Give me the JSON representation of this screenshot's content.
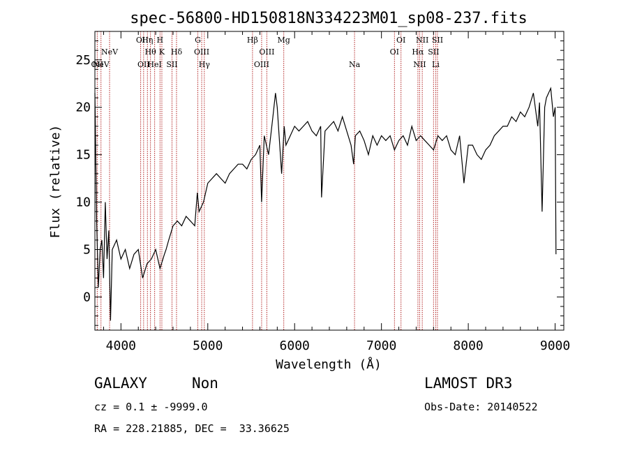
{
  "chart_data": {
    "type": "line",
    "title": "spec-56800-HD150818N334223M01_sp08-237.fits",
    "xlabel": "Wavelength (Å)",
    "ylabel": "Flux (relative)",
    "xlim": [
      3700,
      9100
    ],
    "ylim": [
      -3.5,
      28
    ],
    "xticks": [
      4000,
      5000,
      6000,
      7000,
      8000,
      9000
    ],
    "yticks": [
      0,
      5,
      10,
      15,
      20,
      25
    ],
    "grid": false,
    "series": [
      {
        "color": "#000000",
        "x": [
          3700,
          3720,
          3740,
          3760,
          3780,
          3800,
          3820,
          3840,
          3860,
          3880,
          3900,
          3950,
          4000,
          4050,
          4100,
          4150,
          4200,
          4250,
          4300,
          4350,
          4400,
          4450,
          4500,
          4520,
          4550,
          4600,
          4650,
          4700,
          4750,
          4800,
          4850,
          4880,
          4900,
          4950,
          5000,
          5050,
          5100,
          5150,
          5200,
          5250,
          5300,
          5350,
          5400,
          5450,
          5500,
          5550,
          5600,
          5620,
          5650,
          5700,
          5750,
          5780,
          5800,
          5850,
          5880,
          5900,
          5950,
          6000,
          6050,
          6100,
          6150,
          6200,
          6250,
          6300,
          6310,
          6350,
          6400,
          6450,
          6500,
          6550,
          6600,
          6650,
          6680,
          6700,
          6750,
          6800,
          6850,
          6900,
          6950,
          7000,
          7050,
          7100,
          7150,
          7200,
          7250,
          7300,
          7350,
          7400,
          7450,
          7500,
          7550,
          7600,
          7650,
          7700,
          7750,
          7800,
          7850,
          7900,
          7950,
          8000,
          8050,
          8100,
          8150,
          8200,
          8250,
          8300,
          8350,
          8400,
          8450,
          8500,
          8550,
          8600,
          8650,
          8700,
          8750,
          8800,
          8820,
          8850,
          8880,
          8900,
          8950,
          8980,
          9000,
          9010
        ],
        "y": [
          21.5,
          8,
          1,
          5,
          6,
          2,
          10,
          4,
          7,
          -2.5,
          5,
          6,
          4,
          5,
          3,
          4.5,
          5,
          2,
          3.5,
          4,
          5,
          3,
          4.5,
          5,
          6,
          7.5,
          8,
          7.5,
          8.5,
          8,
          7.5,
          11,
          9,
          10,
          12,
          12.5,
          13,
          12.5,
          12,
          13,
          13.5,
          14,
          14,
          13.5,
          14.5,
          15,
          16,
          10,
          17,
          15,
          19,
          21.5,
          20,
          13,
          18,
          16,
          17,
          18,
          17.5,
          18,
          18.5,
          17.5,
          17,
          18,
          10.5,
          17.5,
          18,
          18.5,
          17.5,
          19,
          17.5,
          16,
          14,
          17,
          17.5,
          16.5,
          15,
          17,
          16,
          17,
          16.5,
          17,
          15.5,
          16.5,
          17,
          16,
          18,
          16.5,
          17,
          16.5,
          16,
          15.5,
          17,
          16.5,
          17,
          15.5,
          15,
          17,
          12,
          16,
          16,
          15,
          14.5,
          15.5,
          16,
          17,
          17.5,
          18,
          18,
          19,
          18.5,
          19.5,
          19,
          20,
          21.5,
          18,
          20.5,
          9,
          20,
          21,
          22,
          19,
          20,
          4.5
        ]
      }
    ],
    "emission_lines": [
      {
        "wavelength": 3727,
        "row": 3,
        "label": "OII"
      },
      {
        "wavelength": 3770,
        "row": 3,
        "label": "NeV"
      },
      {
        "wavelength": 3869,
        "row": 2,
        "label": "NeV"
      },
      {
        "wavelength": 4227,
        "row": 1,
        "label": "OI"
      },
      {
        "wavelength": 4261,
        "row": 3,
        "label": "OII"
      },
      {
        "wavelength": 4305,
        "row": 1,
        "label": "Hη"
      },
      {
        "wavelength": 4340,
        "row": 2,
        "label": "Hθ"
      },
      {
        "wavelength": 4388,
        "row": 3,
        "label": "HeI"
      },
      {
        "wavelength": 4450,
        "row": 1,
        "label": "H"
      },
      {
        "wavelength": 4471,
        "row": 2,
        "label": "K"
      },
      {
        "wavelength": 4588,
        "row": 3,
        "label": "SII"
      },
      {
        "wavelength": 4640,
        "row": 2,
        "label": "Hδ"
      },
      {
        "wavelength": 4885,
        "row": 1,
        "label": "G"
      },
      {
        "wavelength": 4930,
        "row": 2,
        "label": "OIII"
      },
      {
        "wavelength": 4960,
        "row": 3,
        "label": "Hγ"
      },
      {
        "wavelength": 5515,
        "row": 1,
        "label": "Hβ"
      },
      {
        "wavelength": 5620,
        "row": 3,
        "label": "OIII"
      },
      {
        "wavelength": 5680,
        "row": 2,
        "label": "OIII"
      },
      {
        "wavelength": 5875,
        "row": 1,
        "label": "Mg"
      },
      {
        "wavelength": 6690,
        "row": 3,
        "label": "Na"
      },
      {
        "wavelength": 7150,
        "row": 2,
        "label": "OI"
      },
      {
        "wavelength": 7225,
        "row": 1,
        "label": "OI"
      },
      {
        "wavelength": 7420,
        "row": 2,
        "label": "Hα"
      },
      {
        "wavelength": 7440,
        "row": 3,
        "label": "NII"
      },
      {
        "wavelength": 7470,
        "row": 1,
        "label": "NII"
      },
      {
        "wavelength": 7600,
        "row": 2,
        "label": "SII"
      },
      {
        "wavelength": 7625,
        "row": 3,
        "label": "Li"
      },
      {
        "wavelength": 7645,
        "row": 1,
        "label": "SII"
      }
    ]
  },
  "info": {
    "class_label": "GALAXY",
    "subclass": "Non",
    "survey": "LAMOST DR3",
    "cz": "cz = 0.1 ± -9999.0",
    "obs_date": "Obs-Date: 20140522",
    "coords": "RA = 228.21885, DEC =  33.36625"
  },
  "colors": {
    "spectrum": "#000000",
    "line_marker": "#b22222"
  }
}
